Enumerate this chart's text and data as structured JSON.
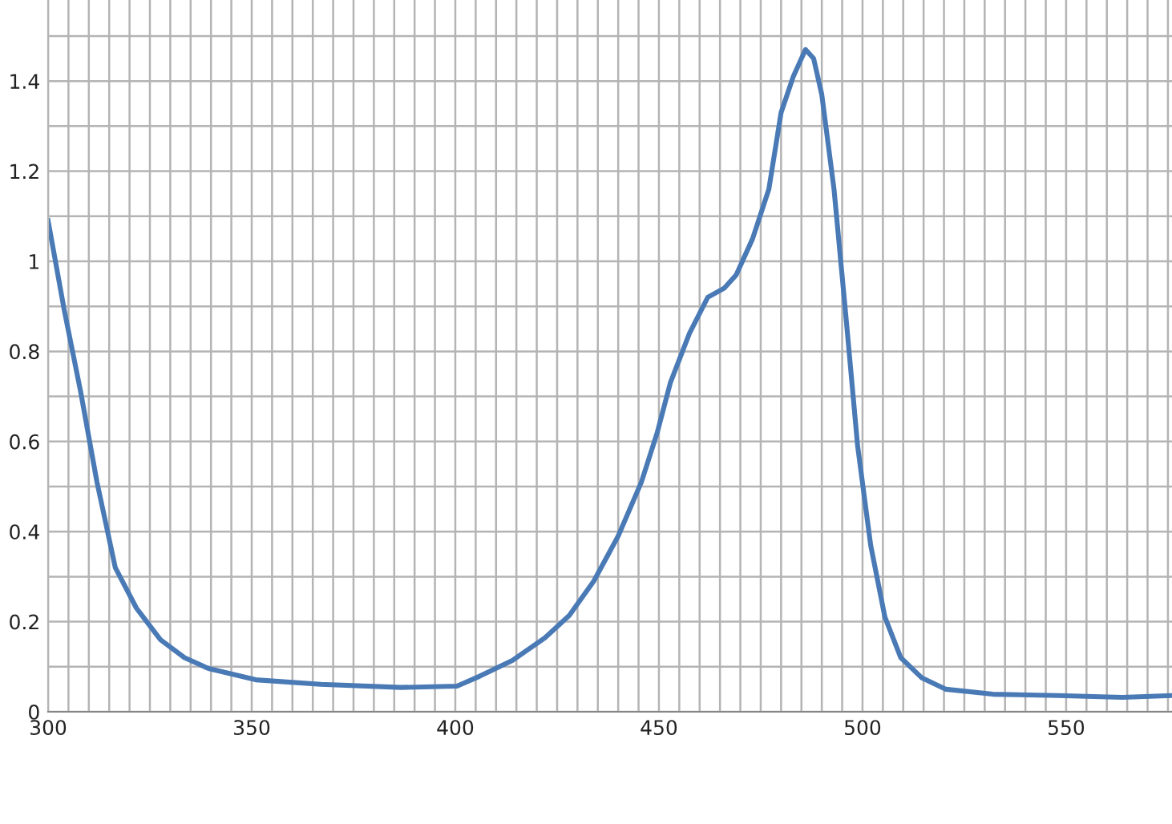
{
  "chart_data": {
    "type": "line",
    "grid": true,
    "marker": "none",
    "line_style": "solid",
    "xlim": [
      300,
      576
    ],
    "ylim": [
      0,
      1.58
    ],
    "xticks": [
      300,
      {
        "value": 305,
        "label": null
      },
      {
        "value": 310,
        "label": null
      },
      {
        "value": 315,
        "label": null
      },
      {
        "value": 320,
        "label": null
      },
      {
        "value": 325,
        "label": null
      },
      {
        "value": 330,
        "label": null
      },
      {
        "value": 335,
        "label": null
      },
      {
        "value": 340,
        "label": null
      },
      {
        "value": 345,
        "label": null
      },
      350,
      {
        "value": 355,
        "label": null
      },
      {
        "value": 360,
        "label": null
      },
      {
        "value": 365,
        "label": null
      },
      {
        "value": 370,
        "label": null
      },
      {
        "value": 375,
        "label": null
      },
      {
        "value": 380,
        "label": null
      },
      {
        "value": 385,
        "label": null
      },
      {
        "value": 390,
        "label": null
      },
      {
        "value": 395,
        "label": null
      },
      400,
      {
        "value": 405,
        "label": null
      },
      {
        "value": 410,
        "label": null
      },
      {
        "value": 415,
        "label": null
      },
      {
        "value": 420,
        "label": null
      },
      {
        "value": 425,
        "label": null
      },
      {
        "value": 430,
        "label": null
      },
      {
        "value": 435,
        "label": null
      },
      {
        "value": 440,
        "label": null
      },
      {
        "value": 445,
        "label": null
      },
      450,
      {
        "value": 455,
        "label": null
      },
      {
        "value": 460,
        "label": null
      },
      {
        "value": 465,
        "label": null
      },
      {
        "value": 470,
        "label": null
      },
      {
        "value": 475,
        "label": null
      },
      {
        "value": 480,
        "label": null
      },
      {
        "value": 485,
        "label": null
      },
      {
        "value": 490,
        "label": null
      },
      {
        "value": 495,
        "label": null
      },
      500,
      {
        "value": 505,
        "label": null
      },
      {
        "value": 510,
        "label": null
      },
      {
        "value": 515,
        "label": null
      },
      {
        "value": 520,
        "label": null
      },
      {
        "value": 525,
        "label": null
      },
      {
        "value": 530,
        "label": null
      },
      {
        "value": 535,
        "label": null
      },
      {
        "value": 540,
        "label": null
      },
      {
        "value": 545,
        "label": null
      },
      550,
      {
        "value": 555,
        "label": null
      },
      {
        "value": 560,
        "label": null
      },
      {
        "value": 565,
        "label": null
      },
      {
        "value": 570,
        "label": null
      },
      {
        "value": 575,
        "label": null
      }
    ],
    "yticks": [
      0,
      {
        "value": 0.1,
        "label": null
      },
      0.2,
      {
        "value": 0.3,
        "label": null
      },
      0.4,
      {
        "value": 0.5,
        "label": null
      },
      0.6,
      {
        "value": 0.7,
        "label": null
      },
      0.8,
      {
        "value": 0.9,
        "label": null
      },
      1,
      {
        "value": 1.1,
        "label": null
      },
      1.2,
      {
        "value": 1.3,
        "label": null
      },
      1.4,
      {
        "value": 1.5,
        "label": null
      }
    ],
    "series": [
      {
        "color": "#4a7ab5",
        "x": [
          300,
          304,
          308,
          312,
          316.5,
          321.7,
          327.6,
          333.5,
          339.4,
          351,
          367,
          386.6,
          400.4,
          406,
          414,
          422,
          428,
          434,
          440,
          445.7,
          449.6,
          452.8,
          457.5,
          462,
          466,
          469,
          473,
          477,
          480,
          483,
          486,
          488,
          490,
          493,
          496,
          498.8,
          502,
          505.5,
          509.4,
          514.6,
          520.5,
          532,
          548,
          563.8,
          576
        ],
        "values": [
          1.09,
          0.89,
          0.71,
          0.51,
          0.32,
          0.23,
          0.16,
          0.12,
          0.096,
          0.071,
          0.061,
          0.054,
          0.057,
          0.079,
          0.114,
          0.164,
          0.214,
          0.29,
          0.39,
          0.51,
          0.62,
          0.73,
          0.84,
          0.92,
          0.94,
          0.97,
          1.05,
          1.16,
          1.33,
          1.41,
          1.47,
          1.45,
          1.37,
          1.16,
          0.87,
          0.59,
          0.37,
          0.21,
          0.12,
          0.075,
          0.05,
          0.039,
          0.036,
          0.032,
          0.036
        ]
      }
    ]
  }
}
